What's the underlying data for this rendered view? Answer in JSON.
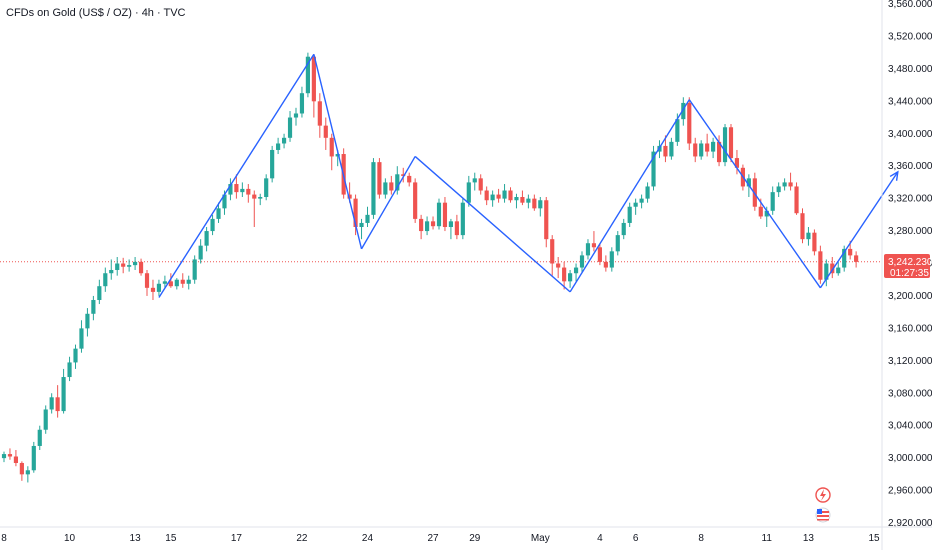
{
  "header": {
    "title": "CFDs on Gold (US$ / OZ) · 4h · TVC"
  },
  "current_price": {
    "value": "3,242.230",
    "countdown": "01:27:35"
  },
  "colors": {
    "up": "#26a69a",
    "down": "#ef5350",
    "trendline": "#2962ff",
    "price_line": "#ef5350",
    "grid": "#f0f3fa",
    "axis_text": "#131722",
    "price_tag_bg": "#ef5350"
  },
  "icons": [
    "lightning-icon",
    "us-flag-icon"
  ],
  "chart_data": {
    "type": "candlestick",
    "title": "CFDs on Gold (US$ / OZ) · 4h · TVC",
    "xlabel": "",
    "ylabel": "",
    "ylim": [
      2920,
      3560
    ],
    "xlim": [
      0,
      146
    ],
    "grid": false,
    "y_tick_labels": [
      "3,560.000",
      "3,520.000",
      "3,480.000",
      "3,440.000",
      "3,400.000",
      "3,360.000",
      "3,320.000",
      "3,280.000",
      "3,240.000",
      "3,200.000",
      "3,160.000",
      "3,120.000",
      "3,080.000",
      "3,040.000",
      "3,000.000",
      "2,960.000",
      "2,920.000"
    ],
    "y_tick_values": [
      3560,
      3520,
      3480,
      3440,
      3400,
      3360,
      3320,
      3280,
      3240,
      3200,
      3160,
      3120,
      3080,
      3040,
      3000,
      2960,
      2920
    ],
    "x_tick_labels": [
      "8",
      "10",
      "13",
      "15",
      "17",
      "22",
      "24",
      "27",
      "29",
      "May",
      "4",
      "6",
      "8",
      "11",
      "13",
      "15"
    ],
    "x_tick_index": [
      0,
      11,
      22,
      28,
      39,
      50,
      61,
      72,
      79,
      90,
      100,
      106,
      117,
      128,
      135,
      146
    ],
    "candles": [
      [
        3000,
        3008,
        2995,
        3005
      ],
      [
        3005,
        3012,
        2998,
        3002
      ],
      [
        3002,
        3010,
        2990,
        2994
      ],
      [
        2994,
        2996,
        2972,
        2980
      ],
      [
        2980,
        2990,
        2970,
        2985
      ],
      [
        2985,
        3020,
        2982,
        3015
      ],
      [
        3015,
        3040,
        3010,
        3035
      ],
      [
        3035,
        3065,
        3030,
        3060
      ],
      [
        3060,
        3080,
        3055,
        3075
      ],
      [
        3075,
        3090,
        3050,
        3058
      ],
      [
        3058,
        3110,
        3055,
        3100
      ],
      [
        3100,
        3125,
        3095,
        3118
      ],
      [
        3118,
        3140,
        3110,
        3135
      ],
      [
        3135,
        3170,
        3130,
        3160
      ],
      [
        3160,
        3185,
        3150,
        3178
      ],
      [
        3178,
        3200,
        3170,
        3195
      ],
      [
        3195,
        3220,
        3190,
        3212
      ],
      [
        3212,
        3235,
        3205,
        3228
      ],
      [
        3228,
        3245,
        3220,
        3232
      ],
      [
        3232,
        3248,
        3225,
        3240
      ],
      [
        3240,
        3247,
        3228,
        3236
      ],
      [
        3236,
        3245,
        3230,
        3238
      ],
      [
        3238,
        3248,
        3232,
        3242
      ],
      [
        3242,
        3246,
        3225,
        3228
      ],
      [
        3228,
        3232,
        3200,
        3210
      ],
      [
        3210,
        3220,
        3195,
        3205
      ],
      [
        3205,
        3220,
        3200,
        3215
      ],
      [
        3215,
        3225,
        3210,
        3218
      ],
      [
        3218,
        3228,
        3210,
        3212
      ],
      [
        3212,
        3222,
        3208,
        3220
      ],
      [
        3220,
        3228,
        3210,
        3215
      ],
      [
        3215,
        3225,
        3208,
        3220
      ],
      [
        3220,
        3250,
        3215,
        3245
      ],
      [
        3245,
        3270,
        3240,
        3262
      ],
      [
        3262,
        3285,
        3255,
        3280
      ],
      [
        3280,
        3300,
        3275,
        3295
      ],
      [
        3295,
        3315,
        3290,
        3308
      ],
      [
        3308,
        3330,
        3300,
        3325
      ],
      [
        3325,
        3345,
        3318,
        3338
      ],
      [
        3338,
        3350,
        3320,
        3328
      ],
      [
        3328,
        3340,
        3322,
        3332
      ],
      [
        3332,
        3338,
        3315,
        3325
      ],
      [
        3325,
        3330,
        3285,
        3320
      ],
      [
        3320,
        3326,
        3312,
        3322
      ],
      [
        3322,
        3350,
        3318,
        3345
      ],
      [
        3345,
        3385,
        3340,
        3380
      ],
      [
        3380,
        3395,
        3375,
        3388
      ],
      [
        3388,
        3400,
        3382,
        3395
      ],
      [
        3395,
        3428,
        3390,
        3420
      ],
      [
        3420,
        3432,
        3410,
        3425
      ],
      [
        3425,
        3458,
        3420,
        3450
      ],
      [
        3450,
        3500,
        3445,
        3495
      ],
      [
        3495,
        3498,
        3420,
        3440
      ],
      [
        3440,
        3450,
        3395,
        3410
      ],
      [
        3410,
        3420,
        3380,
        3395
      ],
      [
        3395,
        3400,
        3355,
        3372
      ],
      [
        3372,
        3380,
        3360,
        3375
      ],
      [
        3375,
        3382,
        3320,
        3325
      ],
      [
        3325,
        3340,
        3315,
        3320
      ],
      [
        3320,
        3325,
        3275,
        3285
      ],
      [
        3285,
        3295,
        3270,
        3290
      ],
      [
        3290,
        3310,
        3285,
        3300
      ],
      [
        3300,
        3370,
        3295,
        3365
      ],
      [
        3365,
        3370,
        3320,
        3325
      ],
      [
        3325,
        3345,
        3320,
        3340
      ],
      [
        3340,
        3348,
        3325,
        3330
      ],
      [
        3330,
        3360,
        3325,
        3350
      ],
      [
        3350,
        3358,
        3340,
        3348
      ],
      [
        3348,
        3352,
        3335,
        3340
      ],
      [
        3340,
        3345,
        3290,
        3295
      ],
      [
        3295,
        3300,
        3270,
        3280
      ],
      [
        3280,
        3298,
        3275,
        3292
      ],
      [
        3292,
        3298,
        3282,
        3286
      ],
      [
        3286,
        3320,
        3282,
        3315
      ],
      [
        3315,
        3322,
        3280,
        3285
      ],
      [
        3285,
        3295,
        3270,
        3292
      ],
      [
        3292,
        3300,
        3270,
        3275
      ],
      [
        3275,
        3320,
        3270,
        3315
      ],
      [
        3315,
        3348,
        3310,
        3340
      ],
      [
        3340,
        3352,
        3330,
        3345
      ],
      [
        3345,
        3350,
        3325,
        3330
      ],
      [
        3330,
        3335,
        3312,
        3318
      ],
      [
        3318,
        3330,
        3310,
        3325
      ],
      [
        3325,
        3332,
        3315,
        3320
      ],
      [
        3320,
        3338,
        3315,
        3330
      ],
      [
        3330,
        3334,
        3315,
        3318
      ],
      [
        3318,
        3326,
        3308,
        3322
      ],
      [
        3322,
        3330,
        3312,
        3315
      ],
      [
        3315,
        3325,
        3308,
        3320
      ],
      [
        3320,
        3325,
        3305,
        3308
      ],
      [
        3308,
        3322,
        3298,
        3318
      ],
      [
        3318,
        3322,
        3260,
        3270
      ],
      [
        3270,
        3275,
        3225,
        3240
      ],
      [
        3240,
        3248,
        3222,
        3235
      ],
      [
        3235,
        3242,
        3208,
        3218
      ],
      [
        3218,
        3232,
        3210,
        3228
      ],
      [
        3228,
        3240,
        3218,
        3235
      ],
      [
        3235,
        3255,
        3228,
        3250
      ],
      [
        3250,
        3270,
        3245,
        3265
      ],
      [
        3265,
        3280,
        3255,
        3260
      ],
      [
        3260,
        3265,
        3238,
        3242
      ],
      [
        3242,
        3250,
        3230,
        3235
      ],
      [
        3235,
        3260,
        3230,
        3255
      ],
      [
        3255,
        3280,
        3250,
        3275
      ],
      [
        3275,
        3295,
        3270,
        3290
      ],
      [
        3290,
        3315,
        3285,
        3310
      ],
      [
        3310,
        3320,
        3300,
        3315
      ],
      [
        3315,
        3325,
        3308,
        3320
      ],
      [
        3320,
        3340,
        3315,
        3335
      ],
      [
        3335,
        3385,
        3330,
        3378
      ],
      [
        3378,
        3392,
        3370,
        3385
      ],
      [
        3385,
        3398,
        3365,
        3372
      ],
      [
        3372,
        3395,
        3368,
        3390
      ],
      [
        3390,
        3425,
        3385,
        3418
      ],
      [
        3418,
        3445,
        3410,
        3438
      ],
      [
        3438,
        3445,
        3380,
        3388
      ],
      [
        3388,
        3395,
        3365,
        3372
      ],
      [
        3372,
        3392,
        3368,
        3388
      ],
      [
        3388,
        3400,
        3372,
        3378
      ],
      [
        3378,
        3395,
        3370,
        3390
      ],
      [
        3390,
        3398,
        3360,
        3365
      ],
      [
        3365,
        3412,
        3360,
        3408
      ],
      [
        3408,
        3412,
        3365,
        3370
      ],
      [
        3370,
        3380,
        3350,
        3358
      ],
      [
        3358,
        3362,
        3330,
        3335
      ],
      [
        3335,
        3350,
        3322,
        3345
      ],
      [
        3345,
        3352,
        3305,
        3310
      ],
      [
        3310,
        3320,
        3295,
        3298
      ],
      [
        3298,
        3310,
        3285,
        3305
      ],
      [
        3305,
        3335,
        3300,
        3328
      ],
      [
        3328,
        3340,
        3322,
        3335
      ],
      [
        3335,
        3345,
        3330,
        3340
      ],
      [
        3340,
        3352,
        3330,
        3335
      ],
      [
        3335,
        3340,
        3300,
        3302
      ],
      [
        3302,
        3308,
        3265,
        3270
      ],
      [
        3270,
        3285,
        3262,
        3278
      ],
      [
        3278,
        3282,
        3250,
        3255
      ],
      [
        3255,
        3262,
        3215,
        3220
      ],
      [
        3220,
        3245,
        3212,
        3240
      ],
      [
        3240,
        3248,
        3222,
        3228
      ],
      [
        3228,
        3242,
        3225,
        3235
      ],
      [
        3235,
        3262,
        3230,
        3258
      ],
      [
        3258,
        3268,
        3245,
        3250
      ],
      [
        3250,
        3255,
        3235,
        3242
      ]
    ],
    "trendlines": [
      [
        [
          26,
          3198
        ],
        [
          52,
          3498
        ]
      ],
      [
        [
          52,
          3498
        ],
        [
          60,
          3258
        ]
      ],
      [
        [
          60,
          3258
        ],
        [
          69,
          3372
        ]
      ],
      [
        [
          69,
          3372
        ],
        [
          95,
          3205
        ]
      ],
      [
        [
          95,
          3205
        ],
        [
          115,
          3442
        ]
      ],
      [
        [
          115,
          3442
        ],
        [
          137,
          3210
        ]
      ]
    ],
    "arrow": [
      [
        137,
        3210
      ],
      [
        150,
        3353
      ]
    ],
    "current_price_value": 3242.23
  }
}
